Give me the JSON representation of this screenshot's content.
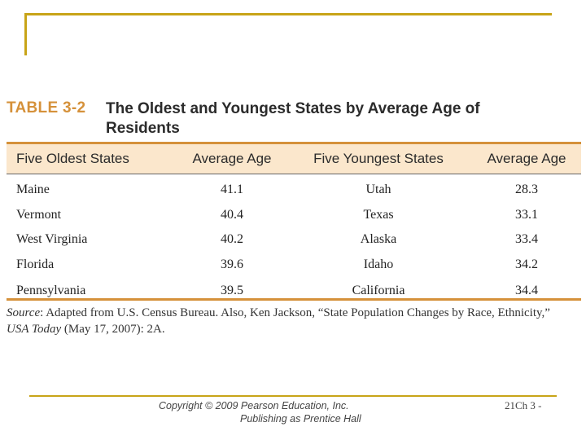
{
  "table": {
    "label": "TABLE 3-2",
    "title": "The Oldest and Youngest States by Average Age of Residents",
    "headers": [
      "Five Oldest States",
      "Average Age",
      "Five Youngest States",
      "Average Age"
    ],
    "rows": [
      [
        "Maine",
        "41.1",
        "Utah",
        "28.3"
      ],
      [
        "Vermont",
        "40.4",
        "Texas",
        "33.1"
      ],
      [
        "West Virginia",
        "40.2",
        "Alaska",
        "33.4"
      ],
      [
        "Florida",
        "39.6",
        "Idaho",
        "34.2"
      ],
      [
        "Pennsylvania",
        "39.5",
        "California",
        "34.4"
      ]
    ]
  },
  "source": {
    "label": "Source",
    "text_part1": ": Adapted from U.S. Census Bureau. Also, Ken Jackson, “State Population Changes by Race, Ethnicity,” ",
    "publication": "USA Today",
    "text_part2": " (May 17, 2007): 2A."
  },
  "footer": {
    "copyright_line1": "Copyright © 2009 Pearson Education, Inc.",
    "copyright_line2": "Publishing as Prentice Hall",
    "slide_number": "21Ch 3 -"
  },
  "colors": {
    "accent": "#d5913a",
    "frame": "#c8a418",
    "header_bg": "#fbe7cc"
  }
}
